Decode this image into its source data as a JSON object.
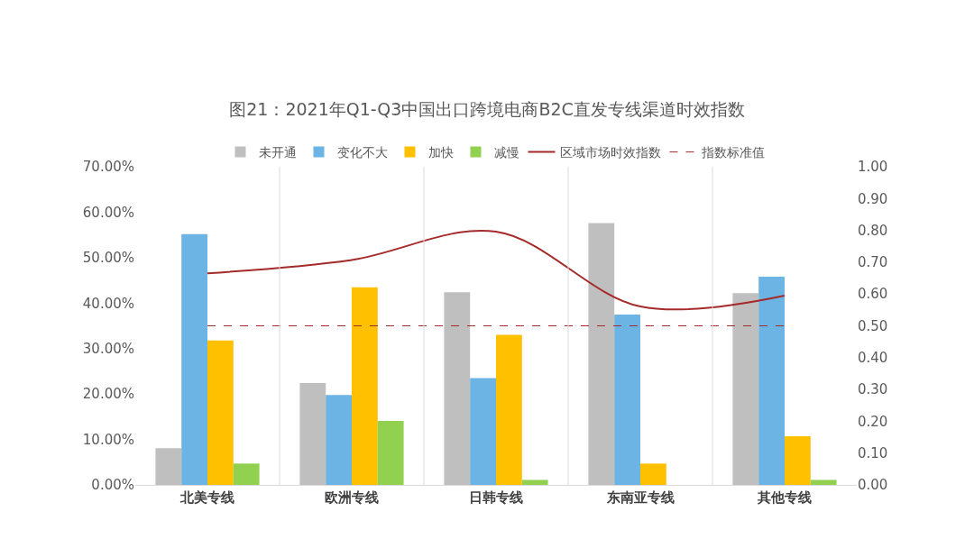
{
  "chart_data": {
    "type": "bar",
    "title": "图21：2021年Q1-Q3中国出口跨境电商B2C直发专线渠道时效指数",
    "categories": [
      "北美专线",
      "欧洲专线",
      "日韩专线",
      "东南亚专线",
      "其他专线"
    ],
    "series": [
      {
        "name": "未开通",
        "color": "#bfbfbf",
        "values": [
          8.1,
          22.4,
          42.4,
          57.6,
          42.2
        ]
      },
      {
        "name": "变化不大",
        "color": "#6cb4e4",
        "values": [
          55.2,
          19.8,
          23.5,
          37.5,
          45.8
        ]
      },
      {
        "name": "加快",
        "color": "#ffc000",
        "values": [
          31.8,
          43.5,
          33.0,
          4.7,
          10.7
        ]
      },
      {
        "name": "减慢",
        "color": "#92d050",
        "values": [
          4.7,
          14.1,
          1.1,
          0,
          1.1
        ]
      },
      {
        "name": "区域市场时效指数",
        "type": "line",
        "axis": "y2",
        "color": "#a52a2a",
        "values": [
          0.665,
          0.707,
          0.796,
          0.561,
          0.595
        ]
      }
    ],
    "ref_lines": [
      {
        "axis": "y2",
        "value": 0.5,
        "label": "指数标准值",
        "color": "#a52a2a",
        "line_style": "dashed"
      }
    ],
    "ylim": [
      0,
      70
    ],
    "yticks": [
      {
        "value": 0,
        "label": "0.00%"
      },
      {
        "value": 10,
        "label": "10.00%"
      },
      {
        "value": 20,
        "label": "20.00%"
      },
      {
        "value": 30,
        "label": "30.00%"
      },
      {
        "value": 40,
        "label": "40.00%"
      },
      {
        "value": 50,
        "label": "50.00%"
      },
      {
        "value": 60,
        "label": "60.00%"
      },
      {
        "value": 70,
        "label": "70.00%"
      }
    ],
    "y2lim": [
      0,
      1
    ],
    "y2ticks": [
      {
        "value": 0,
        "label": "0.00"
      },
      {
        "value": 0.1,
        "label": "0.10"
      },
      {
        "value": 0.2,
        "label": "0.20"
      },
      {
        "value": 0.3,
        "label": "0.30"
      },
      {
        "value": 0.4,
        "label": "0.40"
      },
      {
        "value": 0.5,
        "label": "0.50"
      },
      {
        "value": 0.6,
        "label": "0.60"
      },
      {
        "value": 0.7,
        "label": "0.70"
      },
      {
        "value": 0.8,
        "label": "0.80"
      },
      {
        "value": 0.9,
        "label": "0.90"
      },
      {
        "value": 1,
        "label": "1.00"
      }
    ],
    "grid": "x",
    "legend": "top"
  }
}
